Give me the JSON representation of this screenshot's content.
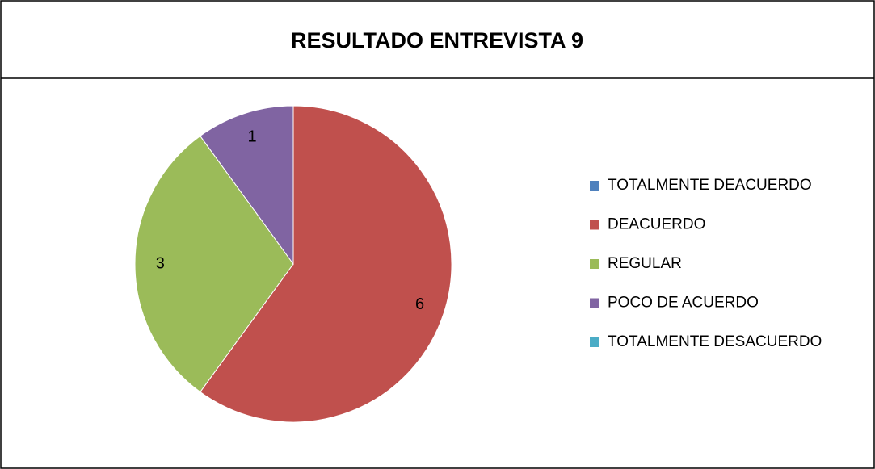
{
  "chart_data": {
    "type": "pie",
    "title": "RESULTADO ENTREVISTA 9",
    "categories": [
      "TOTALMENTE DEACUERDO",
      "DEACUERDO",
      "REGULAR",
      "POCO DE ACUERDO",
      "TOTALMENTE DESACUERDO"
    ],
    "values": [
      0,
      6,
      3,
      1,
      0
    ],
    "colors": [
      "#4f81bd",
      "#c0504d",
      "#9bbb59",
      "#8064a2",
      "#4bacc6"
    ],
    "legend": "right"
  }
}
